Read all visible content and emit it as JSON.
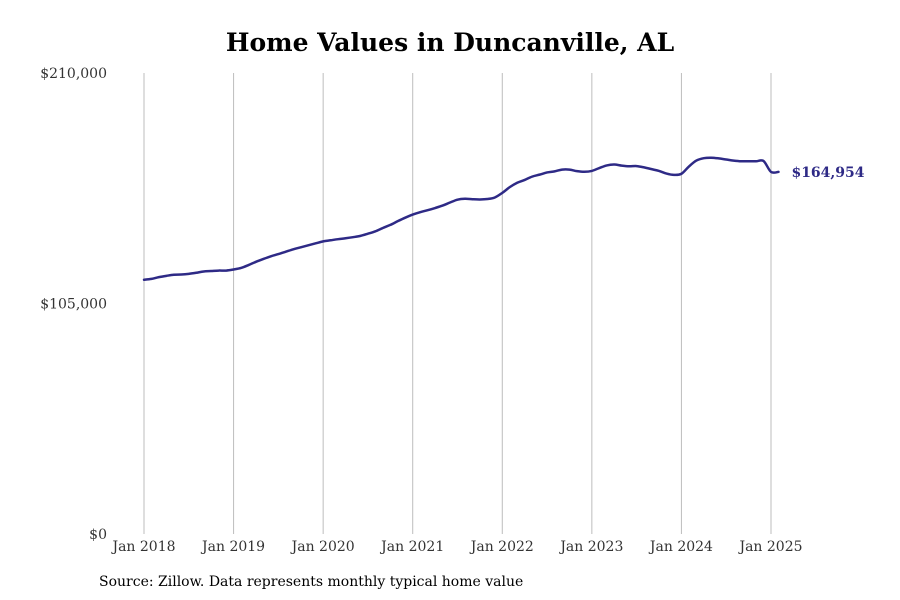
{
  "chart_data": {
    "type": "line",
    "title": "Home Values in Duncanville, AL",
    "source": "Source: Zillow. Data represents monthly typical home value",
    "xlabel": "",
    "ylabel": "",
    "ylim": [
      0,
      210000
    ],
    "yticks": [
      0,
      105000,
      210000
    ],
    "ytick_labels": [
      "$0",
      "$105,000",
      "$210,000"
    ],
    "xticks": [
      "2018-01",
      "2019-01",
      "2020-01",
      "2021-01",
      "2022-01",
      "2023-01",
      "2024-01",
      "2025-01"
    ],
    "xtick_labels": [
      "Jan 2018",
      "Jan 2019",
      "Jan 2020",
      "Jan 2021",
      "Jan 2022",
      "Jan 2023",
      "Jan 2024",
      "Jan 2025"
    ],
    "x_range": [
      "2018-01",
      "2025-02"
    ],
    "grid": "vertical",
    "end_label": "$164,954",
    "line_color": "#2e2a86",
    "series": [
      {
        "color": "#2e2a86",
        "x": [
          "2018-01",
          "2018-02",
          "2018-03",
          "2018-04",
          "2018-05",
          "2018-06",
          "2018-07",
          "2018-08",
          "2018-09",
          "2018-10",
          "2018-11",
          "2018-12",
          "2019-01",
          "2019-02",
          "2019-03",
          "2019-04",
          "2019-05",
          "2019-06",
          "2019-07",
          "2019-08",
          "2019-09",
          "2019-10",
          "2019-11",
          "2019-12",
          "2020-01",
          "2020-02",
          "2020-03",
          "2020-04",
          "2020-05",
          "2020-06",
          "2020-07",
          "2020-08",
          "2020-09",
          "2020-10",
          "2020-11",
          "2020-12",
          "2021-01",
          "2021-02",
          "2021-03",
          "2021-04",
          "2021-05",
          "2021-06",
          "2021-07",
          "2021-08",
          "2021-09",
          "2021-10",
          "2021-11",
          "2021-12",
          "2022-01",
          "2022-02",
          "2022-03",
          "2022-04",
          "2022-05",
          "2022-06",
          "2022-07",
          "2022-08",
          "2022-09",
          "2022-10",
          "2022-11",
          "2022-12",
          "2023-01",
          "2023-02",
          "2023-03",
          "2023-04",
          "2023-05",
          "2023-06",
          "2023-07",
          "2023-08",
          "2023-09",
          "2023-10",
          "2023-11",
          "2023-12",
          "2024-01",
          "2024-02",
          "2024-03",
          "2024-04",
          "2024-05",
          "2024-06",
          "2024-07",
          "2024-08",
          "2024-09",
          "2024-10",
          "2024-11",
          "2024-12",
          "2025-01",
          "2025-02"
        ],
        "values": [
          115800,
          116200,
          117000,
          117600,
          118100,
          118200,
          118500,
          119000,
          119600,
          119800,
          120000,
          120000,
          120500,
          121200,
          122500,
          124000,
          125300,
          126500,
          127500,
          128600,
          129700,
          130600,
          131500,
          132400,
          133300,
          133800,
          134300,
          134700,
          135200,
          135800,
          136800,
          137900,
          139400,
          140800,
          142500,
          144100,
          145500,
          146600,
          147500,
          148500,
          149600,
          151000,
          152300,
          152700,
          152500,
          152400,
          152600,
          153300,
          155400,
          158000,
          160000,
          161300,
          162800,
          163700,
          164700,
          165200,
          166000,
          166000,
          165300,
          165000,
          165400,
          166700,
          167900,
          168300,
          167800,
          167500,
          167600,
          167000,
          166200,
          165400,
          164200,
          163600,
          164100,
          167400,
          170100,
          171200,
          171400,
          171100,
          170600,
          170100,
          169800,
          169800,
          169800,
          169900,
          164954,
          164954
        ]
      }
    ]
  }
}
